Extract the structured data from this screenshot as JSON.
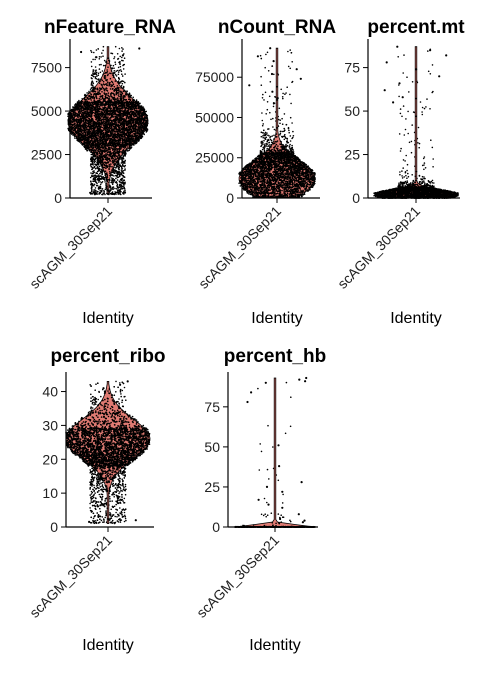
{
  "chart_data": [
    {
      "type": "violin",
      "title": "nFeature_RNA",
      "categories": [
        "scAGM_30Sep21"
      ],
      "xlabel": "Identity",
      "ylabel": "",
      "yticks": [
        0,
        2500,
        5000,
        7500
      ],
      "ytick_labels": [
        "0",
        "2500",
        "5000",
        "7500"
      ],
      "ylim": [
        0,
        8800
      ],
      "fill_color": "#e07b73",
      "distribution": {
        "min": 200,
        "q1": 3000,
        "median": 4300,
        "q3": 5500,
        "max": 8700,
        "mode": 4400
      },
      "outliers": [
        8600,
        8400,
        8200,
        8100,
        300,
        250
      ]
    },
    {
      "type": "violin",
      "title": "nCount_RNA",
      "categories": [
        "scAGM_30Sep21"
      ],
      "xlabel": "Identity",
      "ylabel": "",
      "yticks": [
        0,
        25000,
        50000,
        75000
      ],
      "ytick_labels": [
        "0",
        "25000",
        "50000",
        "75000"
      ],
      "ylim": [
        0,
        95000
      ],
      "fill_color": "#e07b73",
      "distribution": {
        "min": 500,
        "q1": 8000,
        "median": 16000,
        "q3": 28000,
        "max": 93000,
        "mode": 12000
      },
      "outliers": [
        93000,
        88000,
        85000,
        80000,
        77000,
        74000,
        70000,
        66000,
        62000
      ]
    },
    {
      "type": "violin",
      "title": "percent.mt",
      "categories": [
        "scAGM_30Sep21"
      ],
      "xlabel": "Identity",
      "ylabel": "",
      "yticks": [
        0,
        25,
        50,
        75
      ],
      "ytick_labels": [
        "0",
        "25",
        "50",
        "75"
      ],
      "ylim": [
        0,
        88
      ],
      "fill_color": "#e07b73",
      "distribution": {
        "min": 0,
        "q1": 1,
        "median": 3,
        "q3": 6,
        "max": 87,
        "mode": 2
      },
      "outliers": [
        87,
        85,
        82,
        78,
        74,
        70,
        66,
        62,
        58,
        55
      ]
    },
    {
      "type": "violin",
      "title": "percent_ribo",
      "categories": [
        "scAGM_30Sep21"
      ],
      "xlabel": "Identity",
      "ylabel": "",
      "yticks": [
        0,
        10,
        20,
        30,
        40
      ],
      "ytick_labels": [
        "0",
        "10",
        "20",
        "30",
        "40"
      ],
      "ylim": [
        0,
        44
      ],
      "fill_color": "#e07b73",
      "distribution": {
        "min": 1,
        "q1": 18,
        "median": 25,
        "q3": 29,
        "max": 43,
        "mode": 26
      },
      "outliers": [
        43,
        42,
        41,
        40,
        1.5,
        2
      ]
    },
    {
      "type": "violin",
      "title": "percent_hb",
      "categories": [
        "scAGM_30Sep21"
      ],
      "xlabel": "Identity",
      "ylabel": "",
      "yticks": [
        0,
        25,
        50,
        75
      ],
      "ytick_labels": [
        "0",
        "25",
        "50",
        "75"
      ],
      "ylim": [
        0,
        93
      ],
      "fill_color": "#e07b73",
      "distribution": {
        "min": 0,
        "q1": 0,
        "median": 0,
        "q3": 0.2,
        "max": 93,
        "mode": 0
      },
      "outliers": [
        93,
        92,
        91,
        90,
        84,
        78,
        51,
        38,
        28,
        25,
        22,
        17,
        14,
        12,
        8,
        5,
        4,
        3
      ]
    }
  ]
}
